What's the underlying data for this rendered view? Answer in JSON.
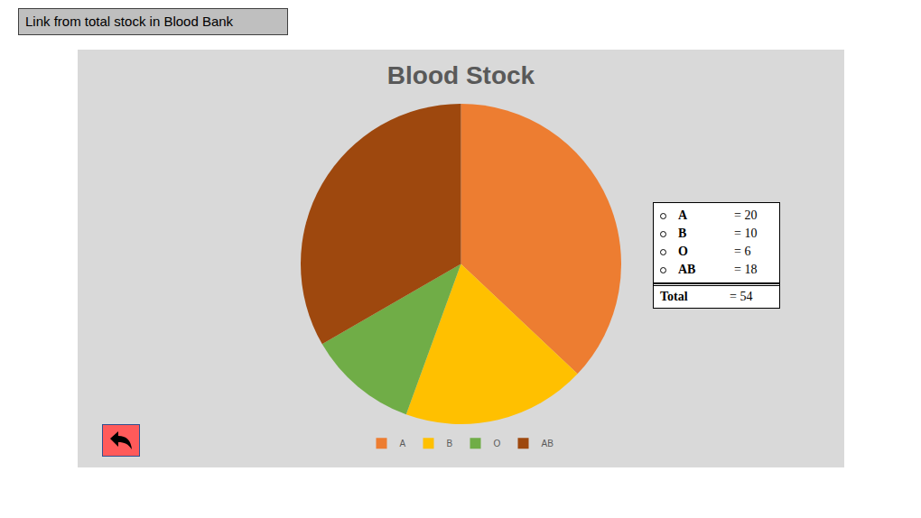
{
  "chart_data": {
    "type": "pie",
    "title": "Blood Stock",
    "categories": [
      "A",
      "B",
      "O",
      "AB"
    ],
    "values": [
      20,
      10,
      6,
      18
    ],
    "colors": [
      "#ed7d31",
      "#ffc000",
      "#70ad47",
      "#9e480e"
    ],
    "legend": "bottom",
    "data_labels": false
  },
  "header": {
    "text": "Link from total stock in Blood Bank"
  },
  "summary_box": {
    "separator": "=",
    "rows": [
      {
        "label": "A",
        "value": 20
      },
      {
        "label": "B",
        "value": 10
      },
      {
        "label": "O",
        "value": 6
      },
      {
        "label": "AB",
        "value": 18
      }
    ],
    "total": {
      "label": "Total",
      "value": 54
    }
  }
}
